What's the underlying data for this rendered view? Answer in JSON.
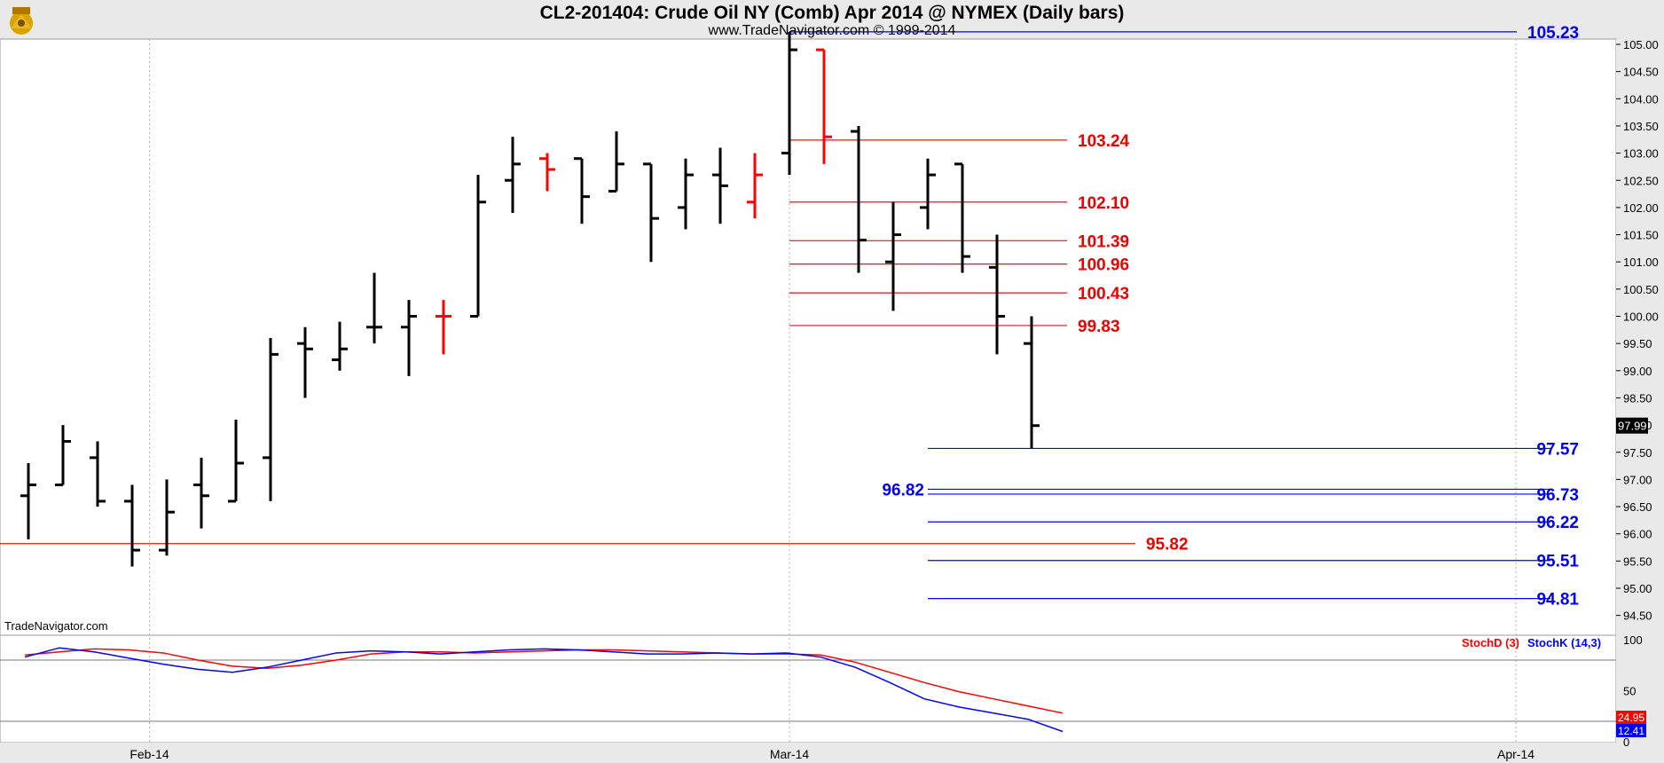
{
  "header": {
    "title": "CL2-201404:  Crude Oil NY (Comb) Apr 2014 @ NYMEX  (Daily bars)",
    "subtitle": "www.TradeNavigator.com © 1999-2014",
    "watermark": "TradeNavigator.com",
    "logo_icon": "trade-navigator-logo-icon"
  },
  "colors": {
    "background": "#ffffff",
    "bar_default": "#000000",
    "bar_down": "#ff0000",
    "bar_up_tick": "#00dd00",
    "red_level": "#ee1111",
    "blue_level": "#0000ff",
    "red_level_label": "#ee0000",
    "blue_level_label": "#0000ee",
    "stoch_k": "#0000ff",
    "stoch_d": "#ff0000"
  },
  "chart_data": [
    {
      "type": "ohlc",
      "title": "CL2-201404:  Crude Oil NY (Comb) Apr 2014 @ NYMEX  (Daily bars)",
      "y_axis": {
        "ylim": [
          94.4,
          105.5
        ],
        "ticks": [
          "105.00",
          "104.50",
          "104.00",
          "103.50",
          "103.00",
          "102.50",
          "102.00",
          "101.50",
          "101.00",
          "100.50",
          "100.00",
          "99.50",
          "99.00",
          "98.50",
          "98.00",
          "97.50",
          "97.00",
          "96.50",
          "96.00",
          "95.50",
          "95.00",
          "94.50"
        ],
        "last_price": "97.99"
      },
      "x_axis": {
        "ticks": [
          {
            "label": "Feb-14",
            "bar": 3.5
          },
          {
            "label": "Mar-14",
            "bar": 22
          },
          {
            "label": "Apr-14",
            "bar": 43
          }
        ],
        "vertical_grid": "dotted"
      },
      "bars": [
        {
          "o": 96.7,
          "h": 97.3,
          "l": 95.9,
          "c": 96.9
        },
        {
          "o": 96.9,
          "h": 98.0,
          "l": 96.9,
          "c": 97.7
        },
        {
          "o": 97.4,
          "h": 97.7,
          "l": 96.5,
          "c": 96.6
        },
        {
          "o": 96.6,
          "h": 96.9,
          "l": 95.4,
          "c": 95.7
        },
        {
          "o": 95.7,
          "h": 97.0,
          "l": 95.6,
          "c": 96.4
        },
        {
          "o": 96.9,
          "h": 97.4,
          "l": 96.1,
          "c": 96.7
        },
        {
          "o": 96.6,
          "h": 98.1,
          "l": 96.6,
          "c": 97.3
        },
        {
          "o": 97.4,
          "h": 99.6,
          "l": 96.6,
          "c": 99.3
        },
        {
          "o": 99.5,
          "h": 99.8,
          "l": 98.5,
          "c": 99.4
        },
        {
          "o": 99.2,
          "h": 99.9,
          "l": 99.0,
          "c": 99.4
        },
        {
          "o": 99.8,
          "h": 100.8,
          "l": 99.5,
          "c": 99.8
        },
        {
          "o": 99.8,
          "h": 100.3,
          "l": 98.9,
          "c": 100.0
        },
        {
          "o": 100.0,
          "h": 100.3,
          "l": 99.3,
          "c": 100.0,
          "color": "red"
        },
        {
          "o": 100.0,
          "h": 102.6,
          "l": 100.0,
          "c": 102.1
        },
        {
          "o": 102.5,
          "h": 103.3,
          "l": 101.9,
          "c": 102.8
        },
        {
          "o": 102.9,
          "h": 103.0,
          "l": 102.3,
          "c": 102.7,
          "color": "red"
        },
        {
          "o": 102.9,
          "h": 102.9,
          "l": 101.7,
          "c": 102.2
        },
        {
          "o": 102.3,
          "h": 103.4,
          "l": 102.3,
          "c": 102.8
        },
        {
          "o": 102.8,
          "h": 102.8,
          "l": 101.0,
          "c": 101.8
        },
        {
          "o": 102.0,
          "h": 102.9,
          "l": 101.6,
          "c": 102.6
        },
        {
          "o": 102.6,
          "h": 103.1,
          "l": 101.7,
          "c": 102.4
        },
        {
          "o": 102.1,
          "h": 103.0,
          "l": 101.8,
          "c": 102.6,
          "color": "red"
        },
        {
          "o": 103.0,
          "h": 105.23,
          "l": 102.6,
          "c": 104.9
        },
        {
          "o": 104.9,
          "h": 104.9,
          "l": 102.8,
          "c": 103.3,
          "color": "red"
        },
        {
          "o": 103.4,
          "h": 103.5,
          "l": 100.8,
          "c": 101.4
        },
        {
          "o": 101.0,
          "h": 102.1,
          "l": 100.1,
          "c": 101.5
        },
        {
          "o": 102.0,
          "h": 102.9,
          "l": 101.6,
          "c": 102.6
        },
        {
          "o": 102.8,
          "h": 102.8,
          "l": 100.8,
          "c": 101.1
        },
        {
          "o": 100.9,
          "h": 101.5,
          "l": 99.3,
          "c": 100.0
        },
        {
          "o": 99.5,
          "h": 100.0,
          "l": 97.57,
          "c": 97.99
        }
      ],
      "levels": [
        {
          "value": "105.23",
          "color": "blue",
          "label_side": "right"
        },
        {
          "value": "103.24",
          "color": "red",
          "label_side": "right"
        },
        {
          "value": "102.10",
          "color": "red",
          "label_side": "right"
        },
        {
          "value": "101.39",
          "color": "red",
          "label_side": "right"
        },
        {
          "value": "100.96",
          "color": "red",
          "label_side": "right"
        },
        {
          "value": "100.43",
          "color": "red",
          "label_side": "right"
        },
        {
          "value": "99.83",
          "color": "red",
          "label_side": "right"
        },
        {
          "value": "97.57",
          "color": "blue",
          "label_side": "right"
        },
        {
          "value": "96.82",
          "color": "blue",
          "label_side": "left"
        },
        {
          "value": "96.73",
          "color": "blue",
          "label_side": "right"
        },
        {
          "value": "96.22",
          "color": "blue",
          "label_side": "right"
        },
        {
          "value": "95.82",
          "color": "red",
          "label_side": "right"
        },
        {
          "value": "95.51",
          "color": "blue",
          "label_side": "right"
        },
        {
          "value": "94.81",
          "color": "blue",
          "label_side": "right"
        }
      ]
    },
    {
      "type": "line",
      "series": [
        {
          "name": "StochD (3)",
          "color": "red",
          "values": [
            85,
            88,
            91,
            90,
            87,
            80,
            74,
            72,
            75,
            80,
            86,
            88,
            88,
            87,
            88,
            89,
            90,
            90,
            89,
            88,
            87,
            86,
            86,
            85,
            78,
            68,
            58,
            49,
            42,
            35,
            28
          ]
        },
        {
          "name": "StochK (14,3)",
          "color": "blue",
          "values": [
            83,
            92,
            88,
            82,
            76,
            71,
            68,
            73,
            80,
            87,
            89,
            88,
            86,
            88,
            90,
            91,
            90,
            88,
            86,
            86,
            87,
            86,
            87,
            83,
            73,
            58,
            42,
            34,
            28,
            22,
            10
          ]
        }
      ],
      "y_axis": {
        "ylim": [
          0,
          100
        ],
        "ticks": [
          "100",
          "50",
          "0"
        ],
        "reference_lines": [
          80,
          20
        ],
        "last_values": [
          "24.95",
          "12.41"
        ]
      }
    }
  ]
}
